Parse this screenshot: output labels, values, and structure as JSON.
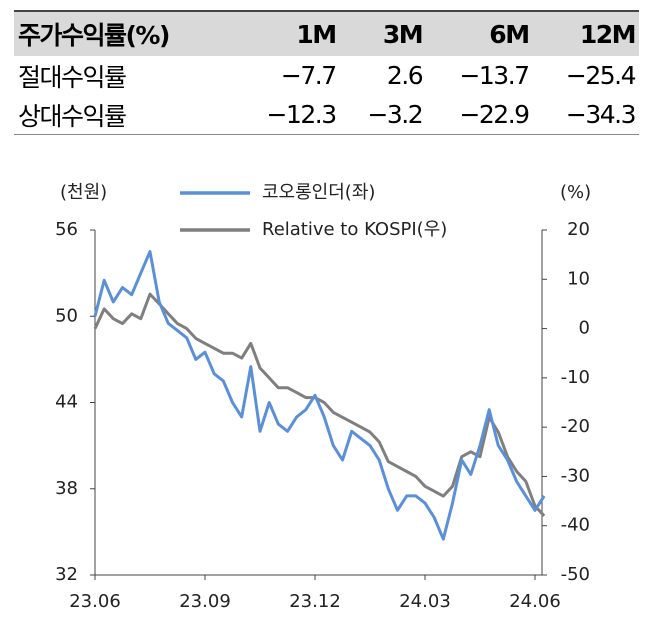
{
  "table": {
    "header": [
      "주가수익률(%)",
      "1M",
      "3M",
      "6M",
      "12M"
    ],
    "rows": [
      [
        "절대수익률",
        "−7.7",
        "2.6",
        "−13.7",
        "−25.4"
      ],
      [
        "상대수익률",
        "−12.3",
        "−3.2",
        "−22.9",
        "−34.3"
      ]
    ]
  },
  "chart_data": {
    "type": "line",
    "ylabel": "(천원)",
    "y2label": "(%)",
    "categories": [
      "23.06",
      null,
      null,
      null,
      null,
      null,
      null,
      null,
      null,
      null,
      null,
      null,
      "23.09",
      null,
      null,
      null,
      null,
      null,
      null,
      null,
      null,
      null,
      null,
      null,
      "23.12",
      null,
      null,
      null,
      null,
      null,
      null,
      null,
      null,
      null,
      null,
      null,
      "24.03",
      null,
      null,
      null,
      null,
      null,
      null,
      null,
      null,
      null,
      null,
      null,
      "24.06",
      null
    ],
    "ylim": [
      32,
      56
    ],
    "yticks": [
      56,
      50,
      44,
      38,
      32
    ],
    "y2lim": [
      -50,
      20
    ],
    "y2ticks": [
      20,
      10,
      0,
      -10,
      -20,
      -30,
      -40,
      -50
    ],
    "series": [
      {
        "name": "코오롱인더(좌)",
        "color": "#5b8fd6",
        "values": [
          50,
          52.5,
          51,
          52,
          51.5,
          53,
          54.5,
          51,
          49.5,
          49,
          48.5,
          47,
          47.5,
          46,
          45.5,
          44,
          43,
          46.5,
          42,
          44,
          42.5,
          42,
          43,
          43.5,
          44.5,
          43,
          41,
          40,
          42,
          41.5,
          41,
          40,
          38,
          36.5,
          37.5,
          37.5,
          37,
          36,
          34.5,
          37,
          40,
          39,
          41,
          43.5,
          41,
          40,
          38.5,
          37.5,
          36.5,
          37.5
        ]
      },
      {
        "name": "Relative to KOSPI(우)",
        "color": "#7f7f7f",
        "axis": "y2",
        "values": [
          0,
          4,
          2,
          1,
          3,
          2,
          7,
          5,
          3,
          1,
          0,
          -2,
          -3,
          -4,
          -5,
          -5,
          -6,
          -3,
          -8,
          -10,
          -12,
          -12,
          -13,
          -14,
          -14,
          -15,
          -17,
          -18,
          -19,
          -20,
          -21,
          -23,
          -27,
          -28,
          -29,
          -30,
          -32,
          -33,
          -34,
          -32,
          -26,
          -25,
          -26,
          -18,
          -21,
          -26,
          -29,
          -31,
          -36,
          -38
        ]
      }
    ]
  }
}
